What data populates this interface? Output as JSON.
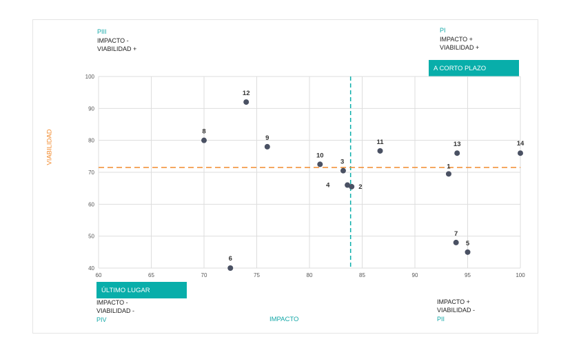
{
  "quadrants": {
    "top_left": {
      "code": "PIII",
      "line1": "IMPACTO -",
      "line2": "VIABILIDAD +"
    },
    "top_right": {
      "code": "PI",
      "line1": "IMPACTO +",
      "line2": "VIABILIDAD +",
      "tag": "A CORTO PLAZO"
    },
    "bottom_left": {
      "code": "PIV",
      "line1": "IMPACTO -",
      "line2": "VIABILIDAD -",
      "tag": "ÚLTIMO LUGAR"
    },
    "bottom_right": {
      "code": "PII",
      "line1": "IMPACTO +",
      "line2": "VIABILIDAD -"
    }
  },
  "colors": {
    "teal": "#08aeaa",
    "teal_text": "#12a7a7",
    "orange": "#f28a2c",
    "point": "#4a5163",
    "grid": "#dddddd"
  },
  "chart_data": {
    "type": "scatter",
    "title": "",
    "xlabel": "IMPACTO",
    "ylabel": "VIABILIDAD",
    "xlim": [
      60,
      100
    ],
    "ylim": [
      40,
      100
    ],
    "xticks": [
      60,
      65,
      70,
      75,
      80,
      85,
      90,
      95,
      100
    ],
    "yticks": [
      40,
      50,
      60,
      70,
      80,
      90,
      100
    ],
    "grid": true,
    "reference_lines": {
      "x": 83.9,
      "y": 71.5
    },
    "points": [
      {
        "label": "1",
        "x": 93.2,
        "y": 69.5
      },
      {
        "label": "2",
        "x": 84.0,
        "y": 65.5
      },
      {
        "label": "3",
        "x": 83.2,
        "y": 70.5
      },
      {
        "label": "4",
        "x": 83.6,
        "y": 66.0
      },
      {
        "label": "5",
        "x": 95.0,
        "y": 45.0
      },
      {
        "label": "6",
        "x": 72.5,
        "y": 40.0
      },
      {
        "label": "7",
        "x": 93.9,
        "y": 48.0
      },
      {
        "label": "8",
        "x": 70.0,
        "y": 80.0
      },
      {
        "label": "9",
        "x": 76.0,
        "y": 78.0
      },
      {
        "label": "10",
        "x": 81.0,
        "y": 72.5
      },
      {
        "label": "11",
        "x": 86.7,
        "y": 76.7
      },
      {
        "label": "12",
        "x": 74.0,
        "y": 92.0
      },
      {
        "label": "13",
        "x": 94.0,
        "y": 76.0
      },
      {
        "label": "14",
        "x": 100.0,
        "y": 76.0
      }
    ]
  }
}
